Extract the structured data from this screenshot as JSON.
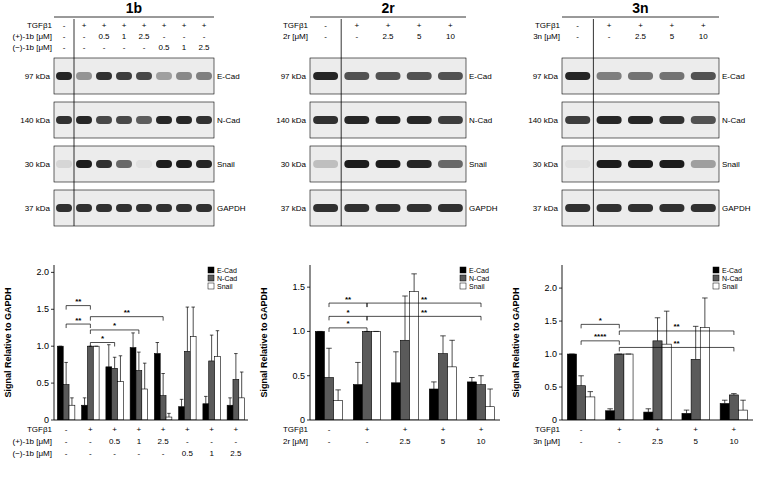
{
  "blots": [
    {
      "title": "1b",
      "rows": [
        {
          "label": "TGFβ1",
          "values": [
            "-",
            "+",
            "+",
            "+",
            "+",
            "+",
            "+",
            "+"
          ]
        },
        {
          "label": "(+)-1b [μM]",
          "values": [
            "-",
            "-",
            "0.5",
            "1",
            "2.5",
            "-",
            "-",
            "-"
          ]
        },
        {
          "label": "(−)-1b [μM]",
          "values": [
            "-",
            "-",
            "-",
            "-",
            "-",
            "0.5",
            "1",
            "2.5"
          ]
        }
      ],
      "strips": [
        {
          "size_label": "97 kDa",
          "protein": "E-Cad",
          "bands": [
            0.9,
            0.4,
            0.85,
            0.8,
            0.75,
            0.35,
            0.45,
            0.5
          ]
        },
        {
          "size_label": "140 kDa",
          "protein": "N-Cad",
          "bands": [
            0.85,
            0.9,
            0.75,
            0.75,
            0.65,
            0.9,
            0.9,
            0.85
          ]
        },
        {
          "size_label": "30 kDa",
          "protein": "Snail",
          "bands": [
            0.1,
            0.95,
            0.85,
            0.6,
            0.05,
            0.95,
            0.95,
            0.9
          ]
        },
        {
          "size_label": "37 kDa",
          "protein": "GAPDH",
          "bands": [
            0.85,
            0.85,
            0.85,
            0.85,
            0.85,
            0.85,
            0.85,
            0.85
          ]
        }
      ]
    },
    {
      "title": "2r",
      "rows": [
        {
          "label": "TGFβ1",
          "values": [
            "-",
            "+",
            "+",
            "+",
            "+"
          ]
        },
        {
          "label": "2r [μM]",
          "values": [
            "-",
            "-",
            "2.5",
            "5",
            "10"
          ]
        }
      ],
      "strips": [
        {
          "size_label": "97 kDa",
          "protein": "E-Cad",
          "bands": [
            0.9,
            0.7,
            0.7,
            0.7,
            0.7
          ]
        },
        {
          "size_label": "140 kDa",
          "protein": "N-Cad",
          "bands": [
            0.85,
            0.9,
            0.9,
            0.9,
            0.8
          ]
        },
        {
          "size_label": "30 kDa",
          "protein": "Snail",
          "bands": [
            0.2,
            0.95,
            0.95,
            0.9,
            0.6
          ]
        },
        {
          "size_label": "37 kDa",
          "protein": "GAPDH",
          "bands": [
            0.85,
            0.85,
            0.85,
            0.85,
            0.85
          ]
        }
      ]
    },
    {
      "title": "3n",
      "rows": [
        {
          "label": "TGFβ1",
          "values": [
            "-",
            "+",
            "+",
            "+",
            "+"
          ]
        },
        {
          "label": "3n [μM]",
          "values": [
            "-",
            "-",
            "2.5",
            "5",
            "10"
          ]
        }
      ],
      "strips": [
        {
          "size_label": "97 kDa",
          "protein": "E-Cad",
          "bands": [
            0.9,
            0.5,
            0.55,
            0.55,
            0.7
          ]
        },
        {
          "size_label": "140 kDa",
          "protein": "N-Cad",
          "bands": [
            0.8,
            0.9,
            0.9,
            0.85,
            0.7
          ]
        },
        {
          "size_label": "30 kDa",
          "protein": "Snail",
          "bands": [
            0.05,
            0.95,
            0.95,
            0.95,
            0.35
          ]
        },
        {
          "size_label": "37 kDa",
          "protein": "GAPDH",
          "bands": [
            0.85,
            0.85,
            0.85,
            0.85,
            0.85
          ]
        }
      ]
    }
  ],
  "chart_data": [
    {
      "type": "bar",
      "ylabel": "Signal Relative to GAPDH",
      "legend": "top-right",
      "category_rows": [
        {
          "label": "TGFβ1",
          "values": [
            "-",
            "+",
            "+",
            "+",
            "+",
            "+",
            "+",
            "+"
          ]
        },
        {
          "label": "(+)-1b [μM]",
          "values": [
            "-",
            "-",
            "0.5",
            "1",
            "2.5",
            "-",
            "-",
            "-"
          ]
        },
        {
          "label": "(−)-1b [μM]",
          "values": [
            "-",
            "-",
            "-",
            "-",
            "-",
            "0.5",
            "1",
            "2.5"
          ]
        }
      ],
      "series": [
        {
          "name": "E-Cad",
          "color": "#000000",
          "values": [
            1.0,
            0.2,
            0.72,
            0.98,
            0.9,
            0.18,
            0.22,
            0.2
          ],
          "errors": [
            0,
            0.1,
            0.3,
            0.2,
            0.15,
            0.1,
            0.1,
            0.1
          ]
        },
        {
          "name": "N-Cad",
          "color": "#5a5a5a",
          "values": [
            0.48,
            1.0,
            0.7,
            0.67,
            0.33,
            0.93,
            0.8,
            0.55
          ],
          "errors": [
            0.3,
            0,
            0.15,
            0.25,
            0.3,
            0.6,
            0.35,
            0.35
          ]
        },
        {
          "name": "Snail",
          "color": "#ffffff",
          "values": [
            0.2,
            1.0,
            0.52,
            0.42,
            0.04,
            1.13,
            0.86,
            0.3
          ],
          "errors": [
            0.1,
            0,
            0.35,
            0.35,
            0.05,
            0.4,
            0.35,
            0.35
          ]
        }
      ],
      "ylim": [
        0,
        2.1
      ],
      "yticks": [
        0,
        0.5,
        {
          "value": 1,
          "label": "1.0"
        },
        1.5,
        {
          "value": 2,
          "label": "2.0"
        }
      ],
      "annotations": [
        {
          "from": 0,
          "to": 1,
          "y": 1.55,
          "label": "**"
        },
        {
          "from": 0,
          "to": 1,
          "y": 1.3,
          "label": "**"
        },
        {
          "from": 1,
          "to": 2,
          "y": 1.05,
          "label": "*"
        },
        {
          "from": 1,
          "to": 3,
          "y": 1.22,
          "label": "*"
        },
        {
          "from": 1,
          "to": 4,
          "y": 1.4,
          "label": "**"
        }
      ]
    },
    {
      "type": "bar",
      "ylabel": "Signal Relative to GAPDH",
      "legend": "top-right",
      "category_rows": [
        {
          "label": "TGFβ1",
          "values": [
            "-",
            "+",
            "+",
            "+",
            "+"
          ]
        },
        {
          "label": "2r [μM]",
          "values": [
            "-",
            "-",
            "2.5",
            "5",
            "10"
          ]
        }
      ],
      "series": [
        {
          "name": "E-Cad",
          "color": "#000000",
          "values": [
            1.0,
            0.4,
            0.42,
            0.35,
            0.43
          ],
          "errors": [
            0,
            0.25,
            0.35,
            0.08,
            0.05
          ]
        },
        {
          "name": "N-Cad",
          "color": "#5a5a5a",
          "values": [
            0.48,
            1.0,
            0.9,
            0.75,
            0.4
          ],
          "errors": [
            0.33,
            0,
            0.5,
            0.2,
            0.1
          ]
        },
        {
          "name": "Snail",
          "color": "#ffffff",
          "values": [
            0.22,
            1.0,
            1.45,
            0.6,
            0.15
          ],
          "errors": [
            0.12,
            0,
            0.2,
            0.3,
            0.2
          ]
        }
      ],
      "ylim": [
        0,
        1.75
      ],
      "yticks": [
        0,
        0.5,
        {
          "value": 1,
          "label": "1.0"
        },
        1.5
      ],
      "annotations": [
        {
          "from": 0,
          "to": 1,
          "y": 1.32,
          "label": "**"
        },
        {
          "from": 0,
          "to": 1,
          "y": 1.17,
          "label": "*"
        },
        {
          "from": 0,
          "to": 1,
          "y": 1.04,
          "label": "*"
        },
        {
          "from": 1,
          "to": 4,
          "y": 1.32,
          "label": "**"
        },
        {
          "from": 1,
          "to": 4,
          "y": 1.17,
          "label": "**"
        }
      ]
    },
    {
      "type": "bar",
      "ylabel": "Signal Relative to GAPDH",
      "legend": "top-right",
      "category_rows": [
        {
          "label": "TGFβ1",
          "values": [
            "-",
            "+",
            "+",
            "+",
            "+"
          ]
        },
        {
          "label": "3n [μM]",
          "values": [
            "-",
            "-",
            "2.5",
            "5",
            "10"
          ]
        }
      ],
      "series": [
        {
          "name": "E-Cad",
          "color": "#000000",
          "values": [
            1.0,
            0.14,
            0.12,
            0.1,
            0.25
          ],
          "errors": [
            0,
            0.03,
            0.05,
            0.05,
            0.05
          ]
        },
        {
          "name": "N-Cad",
          "color": "#5a5a5a",
          "values": [
            0.52,
            1.0,
            1.2,
            0.92,
            0.38
          ],
          "errors": [
            0.15,
            0,
            0.35,
            0.5,
            0.02
          ]
        },
        {
          "name": "Snail",
          "color": "#ffffff",
          "values": [
            0.35,
            1.0,
            1.15,
            1.4,
            0.15
          ],
          "errors": [
            0.08,
            0,
            0.5,
            0.45,
            0.15
          ]
        }
      ],
      "ylim": [
        0,
        2.35
      ],
      "yticks": [
        0,
        0.5,
        {
          "value": 1,
          "label": "1.0"
        },
        1.5,
        {
          "value": 2,
          "label": "2.0"
        }
      ],
      "annotations": [
        {
          "from": 0,
          "to": 1,
          "y": 1.45,
          "label": "*"
        },
        {
          "from": 0,
          "to": 1,
          "y": 1.2,
          "label": "****"
        },
        {
          "from": 1,
          "to": 4,
          "y": 1.35,
          "label": "**"
        },
        {
          "from": 1,
          "to": 4,
          "y": 1.1,
          "label": "**"
        }
      ]
    }
  ]
}
